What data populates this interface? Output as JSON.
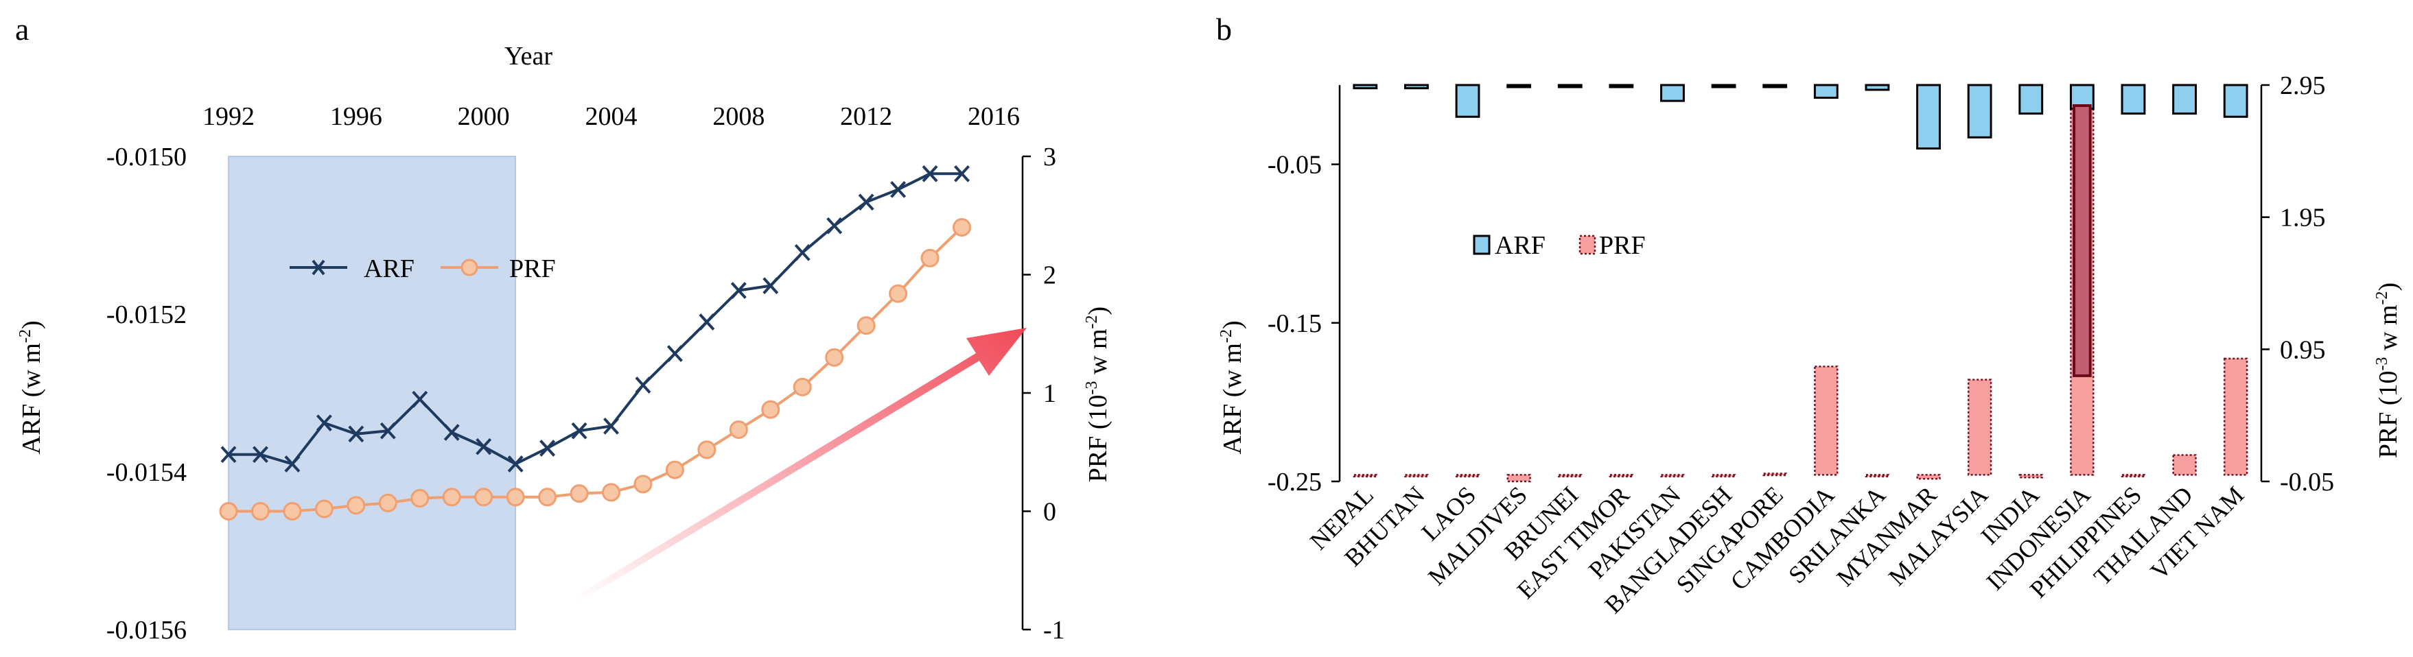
{
  "chart_data": [
    {
      "panel_label": "a",
      "type": "line",
      "x_top_label": "Year",
      "x_ticks": [
        "1992",
        "1996",
        "2000",
        "2004",
        "2008",
        "2012",
        "2016"
      ],
      "x_range": [
        1992,
        2016
      ],
      "shaded_period": [
        1992,
        2001
      ],
      "left_axis": {
        "label_main": "ARF (w m",
        "label_sup": "-2",
        "label_tail": ")",
        "range": [
          -0.0156,
          -0.015
        ],
        "ticks": [
          "-0.0150",
          "-0.0152",
          "-0.0154",
          "-0.0156"
        ]
      },
      "right_axis": {
        "label_main": "PRF (10",
        "label_sup1": "-3",
        "label_mid": " w m",
        "label_sup2": "-2",
        "label_tail": ")",
        "range": [
          -1,
          3
        ],
        "ticks": [
          "3",
          "2",
          "1",
          "0",
          "-1"
        ]
      },
      "legend": [
        "ARF",
        "PRF"
      ],
      "series": [
        {
          "name": "ARF",
          "axis": "left",
          "color": "#1f3a5f",
          "marker": "x",
          "x": [
            1992,
            1993,
            1994,
            1995,
            1996,
            1997,
            1998,
            1999,
            2000,
            2001,
            2002,
            2003,
            2004,
            2005,
            2006,
            2007,
            2008,
            2009,
            2010,
            2011,
            2012,
            2013,
            2014,
            2015
          ],
          "values": [
            -0.015378,
            -0.015378,
            -0.01539,
            -0.015338,
            -0.015352,
            -0.015348,
            -0.015308,
            -0.01535,
            -0.015368,
            -0.01539,
            -0.01537,
            -0.015348,
            -0.015342,
            -0.01529,
            -0.01525,
            -0.01521,
            -0.01517,
            -0.015164,
            -0.015122,
            -0.015088,
            -0.015058,
            -0.015042,
            -0.015022,
            -0.015022
          ]
        },
        {
          "name": "PRF",
          "axis": "right",
          "color": "#f0a070",
          "marker": "circle",
          "x": [
            1992,
            1993,
            1994,
            1995,
            1996,
            1997,
            1998,
            1999,
            2000,
            2001,
            2002,
            2003,
            2004,
            2005,
            2006,
            2007,
            2008,
            2009,
            2010,
            2011,
            2012,
            2013,
            2014,
            2015
          ],
          "values": [
            0.0,
            0.0,
            0.0,
            0.02,
            0.05,
            0.07,
            0.11,
            0.12,
            0.12,
            0.12,
            0.12,
            0.15,
            0.16,
            0.23,
            0.35,
            0.52,
            0.69,
            0.86,
            1.05,
            1.3,
            1.57,
            1.84,
            2.14,
            2.4
          ]
        }
      ]
    },
    {
      "panel_label": "b",
      "type": "bar",
      "categories": [
        "NEPAL",
        "BHUTAN",
        "LAOS",
        "MALDIVES",
        "BRUNEI",
        "EAST TIMOR",
        "PAKISTAN",
        "BANGLADESH",
        "SINGAPORE",
        "CAMBODIA",
        "SRILANKA",
        "MYANMAR",
        "MALAYSIA",
        "INDIA",
        "INDONESIA",
        "PHILIPPINES",
        "THAILAND",
        "VIET NAM"
      ],
      "left_axis": {
        "label_main": "ARF (w m",
        "label_sup": "-2",
        "label_tail": ")",
        "range": [
          -0.25,
          0.0
        ],
        "ticks": [
          "-0.05",
          "-0.15",
          "-0.25"
        ]
      },
      "right_axis": {
        "label_main": "PRF (10",
        "label_sup1": "-3",
        "label_mid": " w m",
        "label_sup2": "-2",
        "label_tail": ")",
        "range": [
          -0.05,
          2.95
        ],
        "ticks": [
          "2.95",
          "1.95",
          "0.95",
          "-0.05"
        ]
      },
      "legend": [
        "ARF",
        "PRF"
      ],
      "series": [
        {
          "name": "ARF",
          "axis": "left",
          "color": "#8ecff0",
          "values": [
            -0.002,
            -0.002,
            -0.02,
            0.0,
            -0.001,
            -0.001,
            -0.01,
            -0.001,
            -0.001,
            -0.008,
            -0.003,
            -0.04,
            -0.033,
            -0.018,
            -0.015,
            -0.018,
            -0.018,
            -0.02
          ]
        },
        {
          "name": "PRF",
          "axis": "right",
          "color": "#f8a0a0",
          "values": [
            0.0,
            0.0,
            0.0,
            -0.05,
            0.0,
            0.0,
            0.0,
            0.0,
            0.01,
            0.82,
            0.0,
            -0.03,
            0.72,
            -0.02,
            2.82,
            0.0,
            0.15,
            0.88
          ]
        }
      ]
    }
  ]
}
